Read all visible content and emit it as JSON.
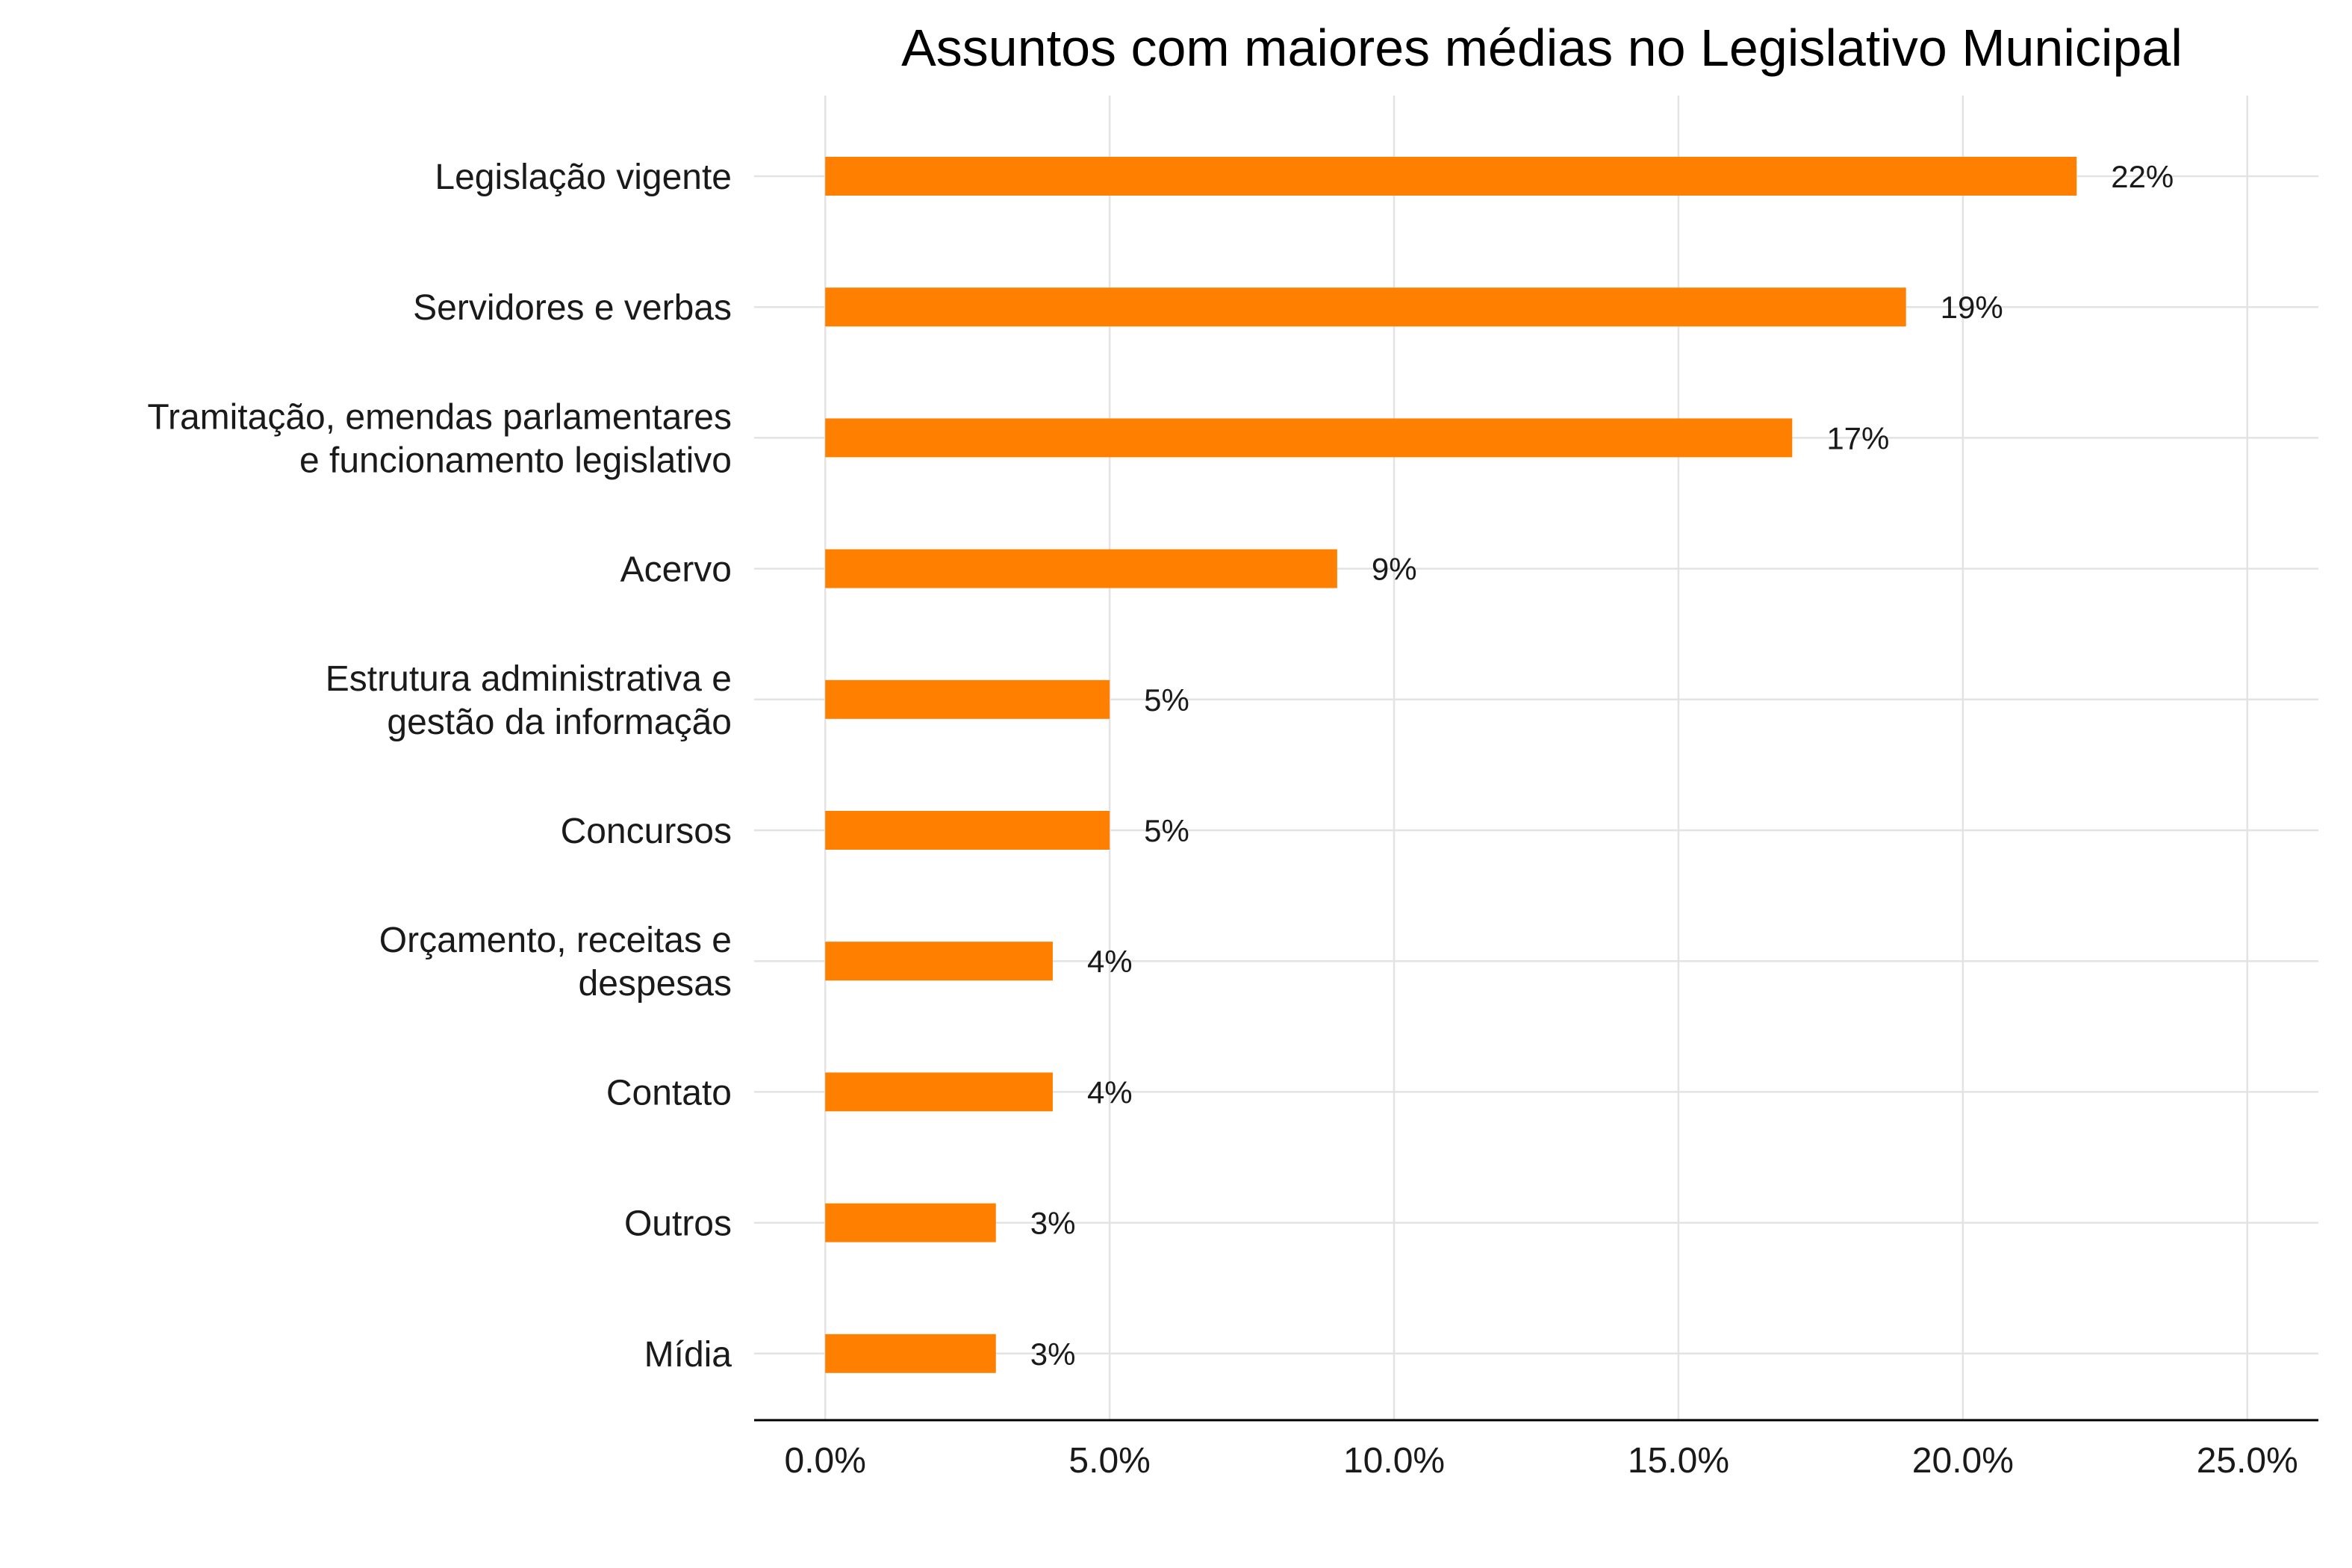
{
  "chart_data": {
    "type": "bar",
    "orientation": "horizontal",
    "title": "Assuntos com maiores médias no Legislativo Municipal",
    "categories": [
      [
        "Legislação vigente"
      ],
      [
        "Servidores e verbas"
      ],
      [
        "Tramitação, emendas parlamentares",
        "e funcionamento legislativo"
      ],
      [
        "Acervo"
      ],
      [
        "Estrutura administrativa e",
        "gestão da informação"
      ],
      [
        "Concursos"
      ],
      [
        "Orçamento, receitas e",
        "despesas"
      ],
      [
        "Contato"
      ],
      [
        "Outros"
      ],
      [
        "Mídia"
      ]
    ],
    "values": [
      22,
      19,
      17,
      9,
      5,
      5,
      4,
      4,
      3,
      3
    ],
    "data_labels": [
      "22%",
      "19%",
      "17%",
      "9%",
      "5%",
      "5%",
      "4%",
      "4%",
      "3%",
      "3%"
    ],
    "xlim": [
      -1.25,
      26.25
    ],
    "x_ticks": [
      0,
      5,
      10,
      15,
      20,
      25
    ],
    "x_tick_labels": [
      "0.0%",
      "5.0%",
      "10.0%",
      "15.0%",
      "20.0%",
      "25.0%"
    ],
    "xlabel": "",
    "ylabel": "",
    "grid": true,
    "legend": "none",
    "bar_color": "#FF8000"
  }
}
